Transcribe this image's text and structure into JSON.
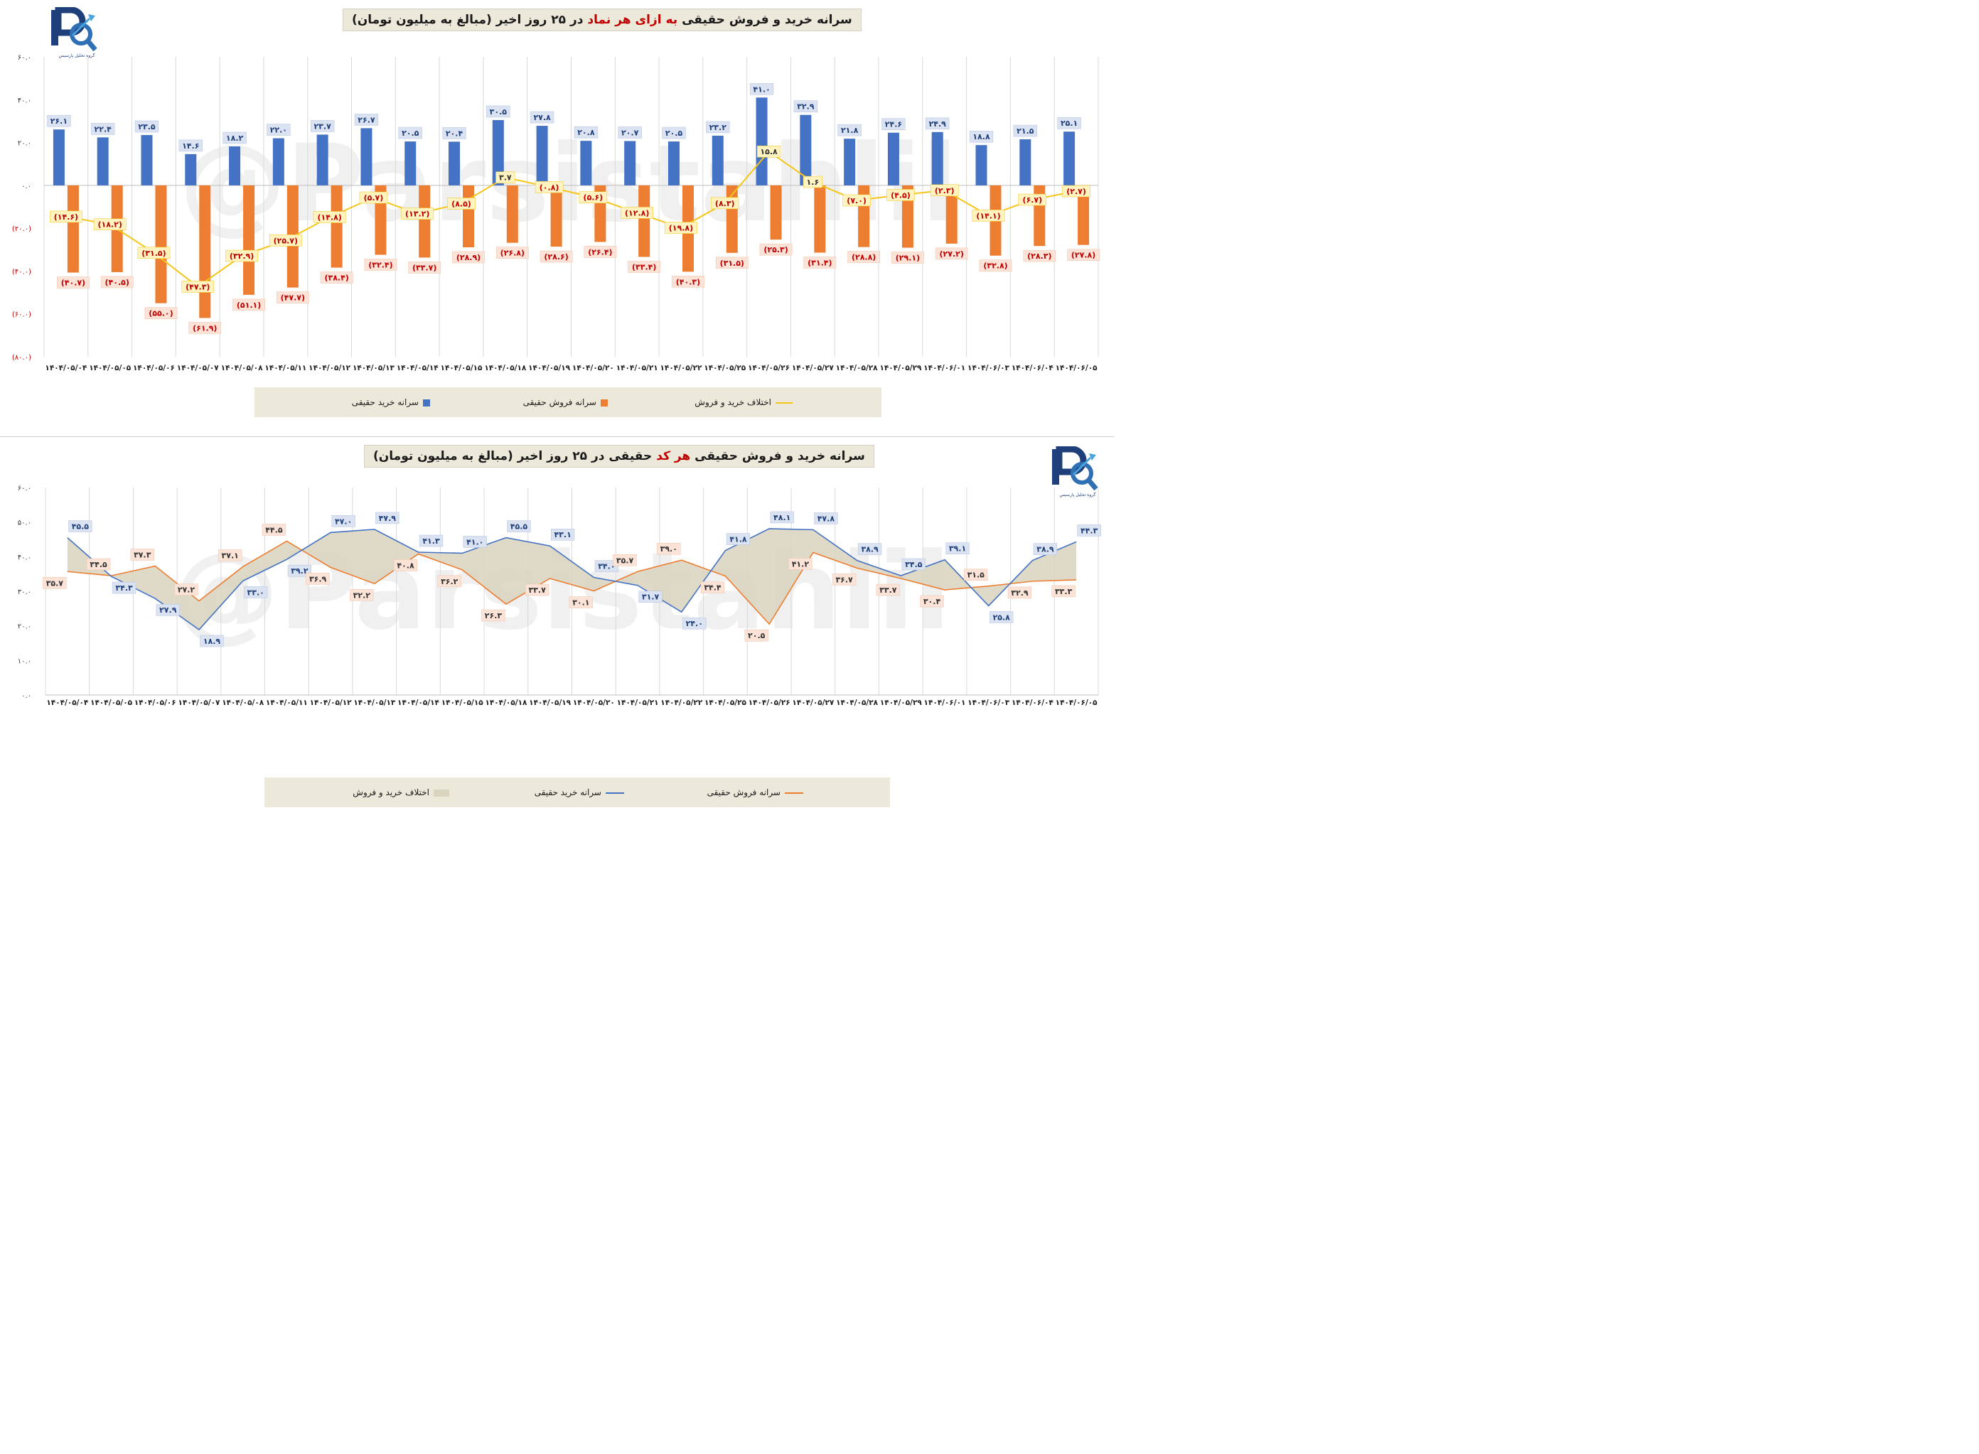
{
  "chart_data": [
    {
      "type": "bar",
      "title_parts": [
        "سرانه خرید و فروش حقیقی ",
        "به ازای هر نماد",
        " در ۲۵ روز اخیر (مبالغ به میلیون تومان)"
      ],
      "categories": [
        "۱۴۰۴/۰۵/۰۴",
        "۱۴۰۴/۰۵/۰۵",
        "۱۴۰۴/۰۵/۰۶",
        "۱۴۰۴/۰۵/۰۷",
        "۱۴۰۴/۰۵/۰۸",
        "۱۴۰۴/۰۵/۱۱",
        "۱۴۰۴/۰۵/۱۲",
        "۱۴۰۴/۰۵/۱۳",
        "۱۴۰۴/۰۵/۱۴",
        "۱۴۰۴/۰۵/۱۵",
        "۱۴۰۴/۰۵/۱۸",
        "۱۴۰۴/۰۵/۱۹",
        "۱۴۰۴/۰۵/۲۰",
        "۱۴۰۴/۰۵/۲۱",
        "۱۴۰۴/۰۵/۲۲",
        "۱۴۰۴/۰۵/۲۵",
        "۱۴۰۴/۰۵/۲۶",
        "۱۴۰۴/۰۵/۲۷",
        "۱۴۰۴/۰۵/۲۸",
        "۱۴۰۴/۰۵/۲۹",
        "۱۴۰۴/۰۶/۰۱",
        "۱۴۰۴/۰۶/۰۳",
        "۱۴۰۴/۰۶/۰۴",
        "۱۴۰۴/۰۶/۰۵"
      ],
      "ylim": [
        -80,
        60
      ],
      "yticks": [
        60,
        40,
        20,
        0,
        -20,
        -40,
        -60,
        -80
      ],
      "ytick_labels": [
        "۶۰.۰",
        "۴۰.۰",
        "۲۰.۰",
        "۰.۰",
        "(۲۰.۰)",
        "(۴۰.۰)",
        "(۶۰.۰)",
        "(۸۰.۰)"
      ],
      "series": [
        {
          "name": "سرانه خرید حقیقی",
          "color": "#4472c4",
          "values": [
            26.1,
            22.4,
            23.5,
            14.6,
            18.2,
            22.0,
            23.7,
            26.7,
            20.5,
            20.4,
            30.5,
            27.8,
            20.8,
            20.7,
            20.5,
            23.2,
            41.0,
            32.9,
            21.8,
            24.6,
            24.9,
            18.8,
            21.5,
            25.1
          ],
          "labels": [
            "۲۶.۱",
            "۲۲.۴",
            "۲۳.۵",
            "۱۴.۶",
            "۱۸.۲",
            "۲۲.۰",
            "۲۳.۷",
            "۲۶.۷",
            "۲۰.۵",
            "۲۰.۴",
            "۳۰.۵",
            "۲۷.۸",
            "۲۰.۸",
            "۲۰.۷",
            "۲۰.۵",
            "۲۳.۲",
            "۴۱.۰",
            "۳۲.۹",
            "۲۱.۸",
            "۲۴.۶",
            "۲۴.۹",
            "۱۸.۸",
            "۲۱.۵",
            "۲۵.۱"
          ]
        },
        {
          "name": "سرانه فروش حقیقی",
          "color": "#ed7d31",
          "values": [
            -40.7,
            -40.5,
            -55.0,
            -61.9,
            -51.1,
            -47.7,
            -38.4,
            -32.4,
            -33.7,
            -28.9,
            -26.8,
            -28.6,
            -26.4,
            -33.4,
            -40.3,
            -31.5,
            -25.3,
            -31.4,
            -28.8,
            -29.1,
            -27.2,
            -32.8,
            -28.3,
            -27.8
          ],
          "labels": [
            "(۴۰.۷)",
            "(۴۰.۵)",
            "(۵۵.۰)",
            "(۶۱.۹)",
            "(۵۱.۱)",
            "(۴۷.۷)",
            "(۳۸.۴)",
            "(۳۲.۴)",
            "(۳۳.۷)",
            "(۲۸.۹)",
            "(۲۶.۸)",
            "(۲۸.۶)",
            "(۲۶.۴)",
            "(۳۳.۴)",
            "(۴۰.۳)",
            "(۳۱.۵)",
            "(۲۵.۳)",
            "(۳۱.۴)",
            "(۲۸.۸)",
            "(۲۹.۱)",
            "(۲۷.۲)",
            "(۳۲.۸)",
            "(۲۸.۳)",
            "(۲۷.۸)"
          ]
        },
        {
          "name": "اختلاف خرید و فروش",
          "color": "#f5c518",
          "values": [
            -14.6,
            -18.2,
            -31.5,
            -47.3,
            -32.9,
            -25.7,
            -14.8,
            -5.7,
            -13.2,
            -8.5,
            3.7,
            -0.8,
            -5.6,
            -12.8,
            -19.8,
            -8.3,
            15.8,
            1.6,
            -7.0,
            -4.5,
            -2.3,
            -14.1,
            -6.7,
            -2.7
          ],
          "labels": [
            "(۱۴.۶)",
            "(۱۸.۲)",
            "(۳۱.۵)",
            "(۴۷.۳)",
            "(۳۲.۹)",
            "(۲۵.۷)",
            "(۱۴.۸)",
            "(۵.۷)",
            "(۱۳.۲)",
            "(۸.۵)",
            "۳.۷",
            "(۰.۸)",
            "(۵.۶)",
            "(۱۲.۸)",
            "(۱۹.۸)",
            "(۸.۳)",
            "۱۵.۸",
            "۱.۶",
            "(۷.۰)",
            "(۴.۵)",
            "(۲.۳)",
            "(۱۴.۱)",
            "(۶.۷)",
            "(۲.۷)"
          ]
        }
      ],
      "legend_position": "bottom",
      "grid": "vertical"
    },
    {
      "type": "line",
      "title_parts": [
        "سرانه خرید و فروش حقیقی ",
        "هر کد",
        " حقیقی در ۲۵ روز اخیر (مبالغ به میلیون تومان)"
      ],
      "categories": [
        "۱۴۰۴/۰۵/۰۴",
        "۱۴۰۴/۰۵/۰۵",
        "۱۴۰۴/۰۵/۰۶",
        "۱۴۰۴/۰۵/۰۷",
        "۱۴۰۴/۰۵/۰۸",
        "۱۴۰۴/۰۵/۱۱",
        "۱۴۰۴/۰۵/۱۲",
        "۱۴۰۴/۰۵/۱۳",
        "۱۴۰۴/۰۵/۱۴",
        "۱۴۰۴/۰۵/۱۵",
        "۱۴۰۴/۰۵/۱۸",
        "۱۴۰۴/۰۵/۱۹",
        "۱۴۰۴/۰۵/۲۰",
        "۱۴۰۴/۰۵/۲۱",
        "۱۴۰۴/۰۵/۲۲",
        "۱۴۰۴/۰۵/۲۵",
        "۱۴۰۴/۰۵/۲۶",
        "۱۴۰۴/۰۵/۲۷",
        "۱۴۰۴/۰۵/۲۸",
        "۱۴۰۴/۰۵/۲۹",
        "۱۴۰۴/۰۶/۰۱",
        "۱۴۰۴/۰۶/۰۳",
        "۱۴۰۴/۰۶/۰۴",
        "۱۴۰۴/۰۶/۰۵"
      ],
      "ylim": [
        0,
        60
      ],
      "yticks": [
        60,
        50,
        40,
        30,
        20,
        10,
        0
      ],
      "ytick_labels": [
        "۶۰.۰",
        "۵۰.۰",
        "۴۰.۰",
        "۳۰.۰",
        "۲۰.۰",
        "۱۰.۰",
        "۰.۰"
      ],
      "series": [
        {
          "name": "سرانه خرید حقیقی",
          "color": "#4472c4",
          "values": [
            45.5,
            34.3,
            27.9,
            18.9,
            33.0,
            39.2,
            47.0,
            47.9,
            41.3,
            41.0,
            45.5,
            43.1,
            34.0,
            31.7,
            24.0,
            41.8,
            48.1,
            47.8,
            38.9,
            34.5,
            39.1,
            25.8,
            38.9,
            44.3
          ],
          "labels": [
            "۴۵.۵",
            "۳۴.۳",
            "۲۷.۹",
            "۱۸.۹",
            "۳۳.۰",
            "۳۹.۲",
            "۴۷.۰",
            "۴۷.۹",
            "۴۱.۳",
            "۴۱.۰",
            "۴۵.۵",
            "۴۳.۱",
            "۳۴.۰",
            "۳۱.۷",
            "۲۴.۰",
            "۴۱.۸",
            "۴۸.۱",
            "۴۷.۸",
            "۳۸.۹",
            "۳۴.۵",
            "۳۹.۱",
            "۲۵.۸",
            "۳۸.۹",
            "۴۴.۳"
          ]
        },
        {
          "name": "سرانه فروش حقیقی",
          "color": "#ed7d31",
          "values": [
            35.7,
            34.5,
            37.3,
            27.2,
            37.1,
            44.5,
            36.9,
            32.2,
            40.8,
            36.2,
            26.3,
            33.7,
            30.1,
            35.7,
            39.0,
            34.4,
            20.5,
            41.2,
            36.7,
            33.7,
            30.4,
            31.5,
            32.9,
            33.3
          ],
          "labels": [
            "۳۵.۷",
            "۳۴.۵",
            "۳۷.۳",
            "۲۷.۲",
            "۳۷.۱",
            "۴۴.۵",
            "۳۶.۹",
            "۳۲.۲",
            "۴۰.۸",
            "۳۶.۲",
            "۲۶.۳",
            "۳۳.۷",
            "۳۰.۱",
            "۳۵.۷",
            "۳۹.۰",
            "۳۴.۴",
            "۲۰.۵",
            "۴۱.۲",
            "۳۶.۷",
            "۳۳.۷",
            "۳۰.۴",
            "۳۱.۵",
            "۳۲.۹",
            "۳۳.۳"
          ]
        }
      ],
      "area_name": "اختلاف خرید و فروش",
      "area_color": "#d9d4bd",
      "legend_position": "bottom",
      "grid": "vertical"
    }
  ],
  "legend1": {
    "buy": "سرانه خرید حقیقی",
    "sell": "سرانه فروش حقیقی",
    "diff": "اختلاف خرید و فروش"
  },
  "legend2": {
    "diff": "اختلاف خرید و فروش",
    "buy": "سرانه خرید حقیقی",
    "sell": "سرانه فروش حقیقی"
  },
  "logo": {
    "letters": "Pt",
    "caption": "گروه تحلیل پارسیس"
  },
  "watermark": "@Parsistahlil"
}
